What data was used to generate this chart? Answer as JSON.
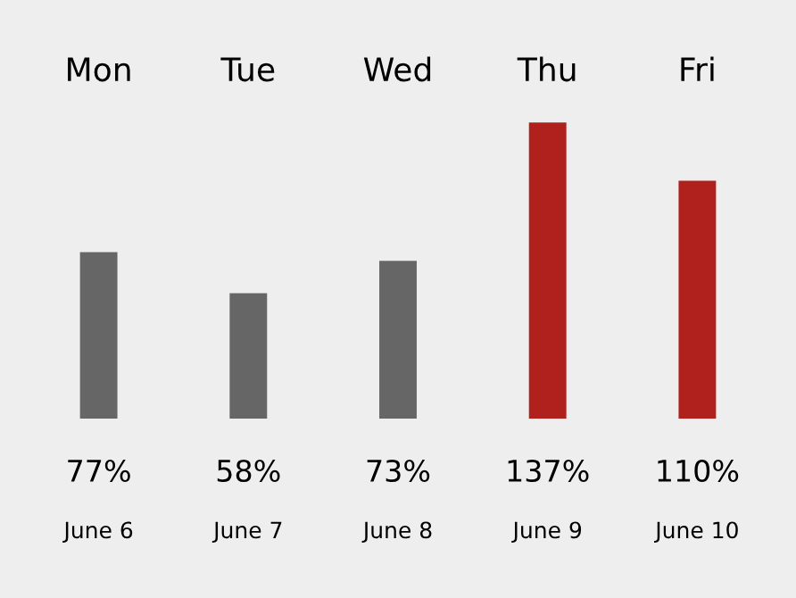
{
  "chart_data": {
    "type": "bar",
    "categories": [
      "Mon",
      "Tue",
      "Wed",
      "Thu",
      "Fri"
    ],
    "values": [
      77,
      58,
      73,
      137,
      110
    ],
    "colors": [
      "#666666",
      "#666666",
      "#666666",
      "#b0201c",
      "#b0201c"
    ],
    "value_labels": [
      "77%",
      "58%",
      "73%",
      "137%",
      "110%"
    ],
    "annotations": [
      "June 6",
      "June 7",
      "June 8",
      "June 9",
      "June 10"
    ],
    "tick_labels": "x",
    "grid": false
  }
}
